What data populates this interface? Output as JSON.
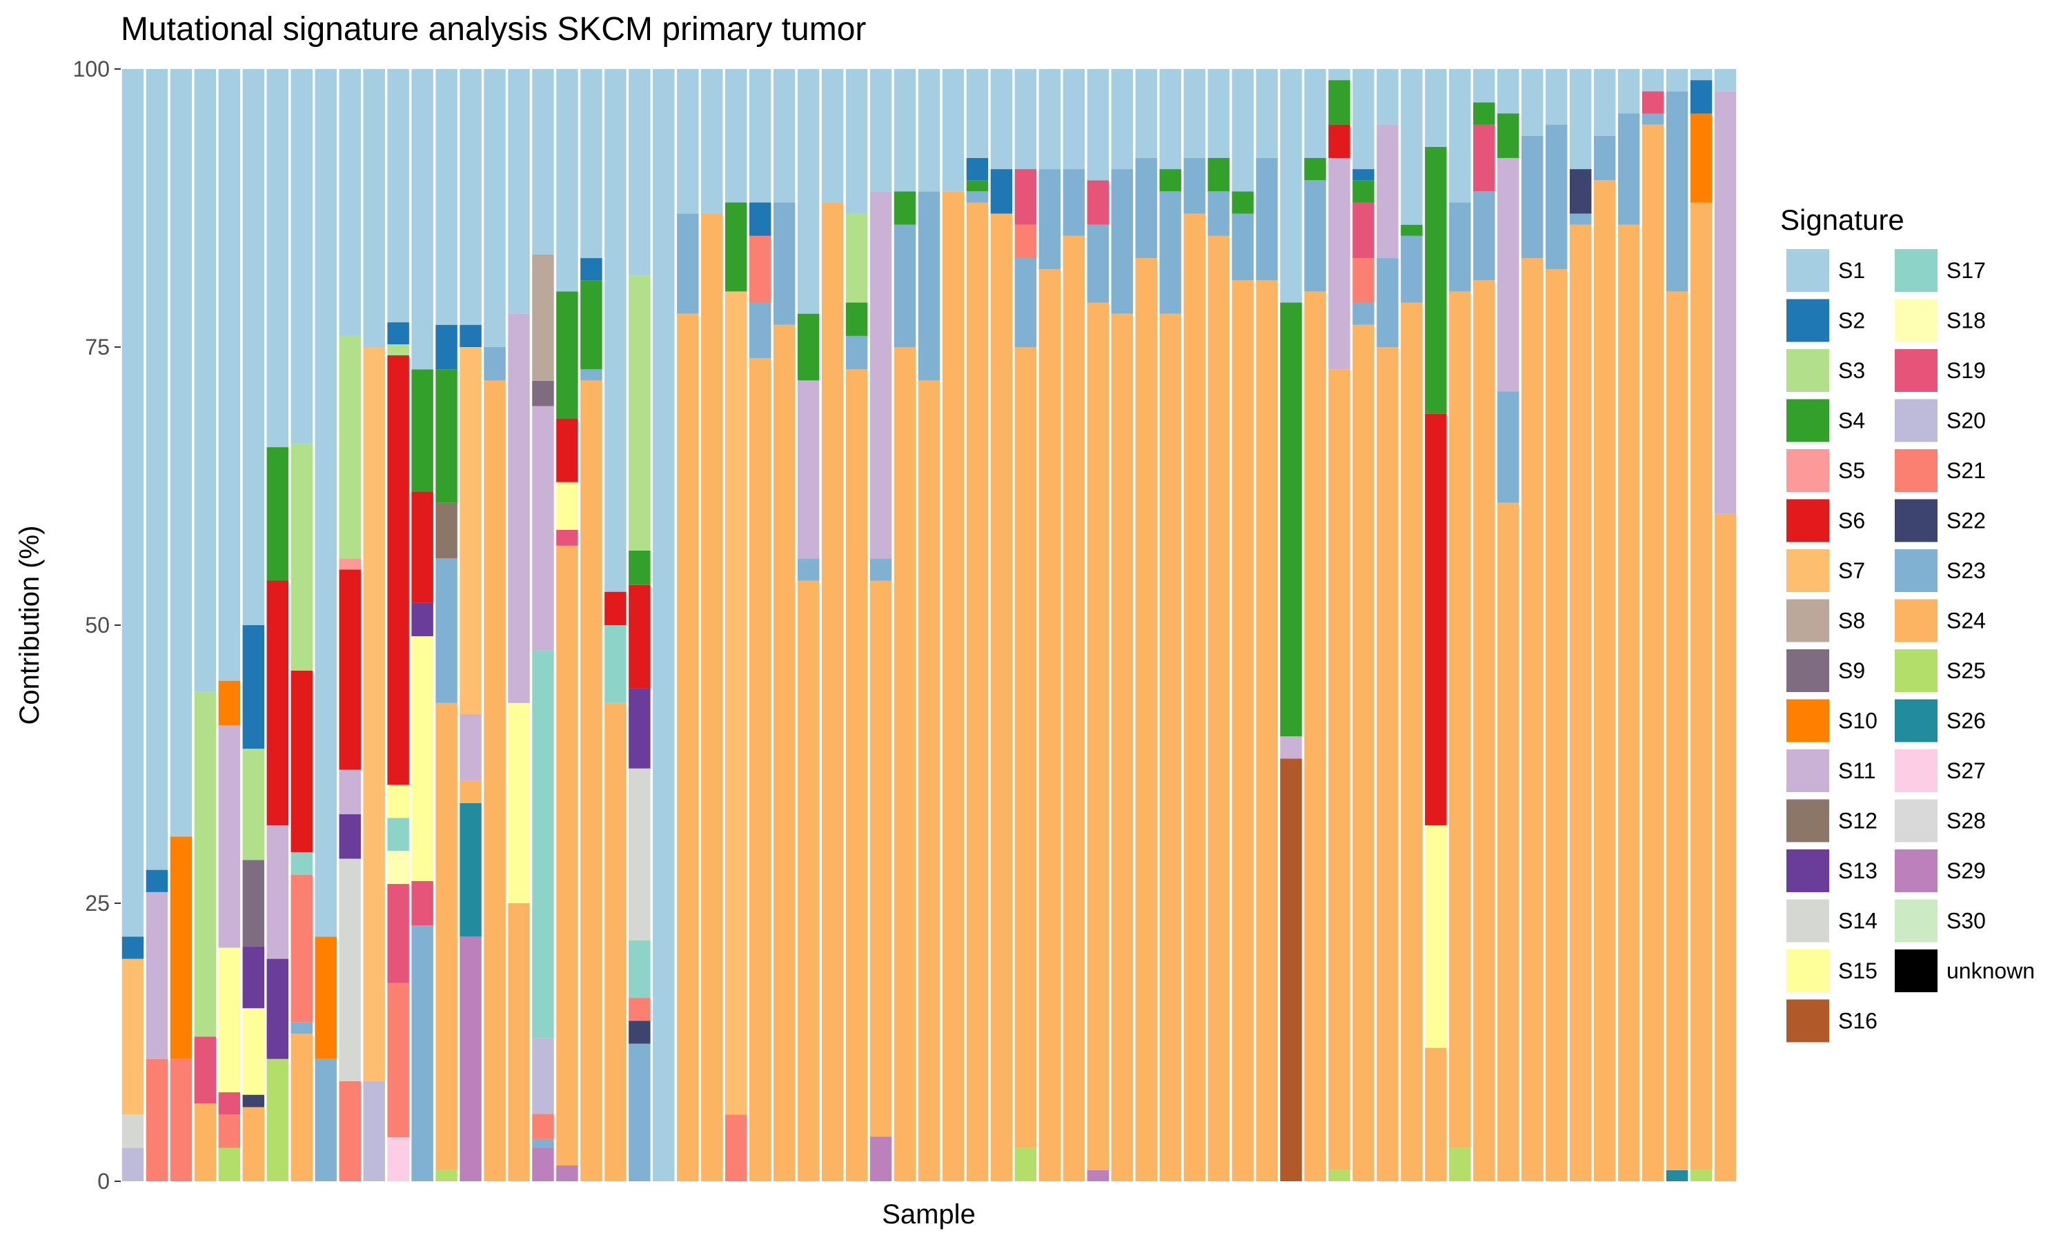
{
  "chart_data": {
    "type": "bar",
    "stacked": true,
    "title": "Mutational signature analysis SKCM primary tumor",
    "xlabel": "Sample",
    "ylabel": "Contribution (%)",
    "ylim": [
      0,
      100
    ],
    "yticks": [
      "0",
      "25",
      "50",
      "75",
      "100"
    ],
    "grid": false,
    "legend": {
      "title": "Signature",
      "position": "right",
      "columns": 2,
      "entries": [
        {
          "key": "S1",
          "label": "S1",
          "color": "#a6cee3"
        },
        {
          "key": "S2",
          "label": "S2",
          "color": "#1f78b4"
        },
        {
          "key": "S3",
          "label": "S3",
          "color": "#b2df8a"
        },
        {
          "key": "S4",
          "label": "S4",
          "color": "#33a02c"
        },
        {
          "key": "S5",
          "label": "S5",
          "color": "#fb9a99"
        },
        {
          "key": "S6",
          "label": "S6",
          "color": "#e31a1c"
        },
        {
          "key": "S7",
          "label": "S7",
          "color": "#fdbf6f"
        },
        {
          "key": "S8",
          "label": "S8",
          "color": "#bca89a"
        },
        {
          "key": "S9",
          "label": "S9",
          "color": "#806c80"
        },
        {
          "key": "S10",
          "label": "S10",
          "color": "#ff7f00"
        },
        {
          "key": "S11",
          "label": "S11",
          "color": "#cab2d6"
        },
        {
          "key": "S12",
          "label": "S12",
          "color": "#8c7668"
        },
        {
          "key": "S13",
          "label": "S13",
          "color": "#6a3d9a"
        },
        {
          "key": "S14",
          "label": "S14",
          "color": "#d5d8d2"
        },
        {
          "key": "S15",
          "label": "S15",
          "color": "#ffff99"
        },
        {
          "key": "S16",
          "label": "S16",
          "color": "#b15928"
        },
        {
          "key": "S17",
          "label": "S17",
          "color": "#8dd3c7"
        },
        {
          "key": "S18",
          "label": "S18",
          "color": "#ffffb3"
        },
        {
          "key": "S19",
          "label": "S19",
          "color": "#e7547a"
        },
        {
          "key": "S20",
          "label": "S20",
          "color": "#bebada"
        },
        {
          "key": "S21",
          "label": "S21",
          "color": "#fb8072"
        },
        {
          "key": "S22",
          "label": "S22",
          "color": "#3e4470"
        },
        {
          "key": "S23",
          "label": "S23",
          "color": "#80b1d3"
        },
        {
          "key": "S24",
          "label": "S24",
          "color": "#fdb462"
        },
        {
          "key": "S25",
          "label": "S25",
          "color": "#b3de69"
        },
        {
          "key": "S26",
          "label": "S26",
          "color": "#238b9e"
        },
        {
          "key": "S27",
          "label": "S27",
          "color": "#fccde5"
        },
        {
          "key": "S28",
          "label": "S28",
          "color": "#d9d9d9"
        },
        {
          "key": "S29",
          "label": "S29",
          "color": "#bc80bd"
        },
        {
          "key": "S30",
          "label": "S30",
          "color": "#ccebc5"
        },
        {
          "key": "unknown",
          "label": "unknown",
          "color": "#000000"
        }
      ]
    },
    "series_order": [
      "S1",
      "S2",
      "S3",
      "S4",
      "S5",
      "S6",
      "S7",
      "S8",
      "S9",
      "S10",
      "S11",
      "S12",
      "S13",
      "S14",
      "S15",
      "S16",
      "S17",
      "S18",
      "S19",
      "S20",
      "S21",
      "S22",
      "S23",
      "S24",
      "S25",
      "S26",
      "S27",
      "S28",
      "S29",
      "S30",
      "unknown"
    ],
    "samples": [
      {
        "S7": 14,
        "S20": 3,
        "S14": 3,
        "S2": 2,
        "S1": 78
      },
      {
        "S11": 15,
        "S21": 11,
        "S2": 2,
        "S1": 72
      },
      {
        "S21": 11,
        "S10": 20,
        "S1": 69
      },
      {
        "S24": 7,
        "S19": 6,
        "S3": 31,
        "S1": 56
      },
      {
        "S25": 3,
        "S19": 2,
        "S21": 3,
        "S11": 20,
        "S15": 13,
        "S10": 4,
        "S1": 55
      },
      {
        "S24": 6,
        "S9": 7,
        "S22": 1,
        "S13": 5,
        "S15": 7,
        "S3": 9,
        "S2": 10,
        "S1": 45
      },
      {
        "S25": 11,
        "S11": 12,
        "S13": 9,
        "S6": 22,
        "S4": 12,
        "S1": 34
      },
      {
        "S24": 13,
        "S21": 13,
        "S23": 1,
        "S17": 2,
        "S6": 16,
        "S3": 20,
        "S1": 33
      },
      {
        "S10": 11,
        "S23": 11,
        "S1": 78
      },
      {
        "S14": 20,
        "S21": 9,
        "S13": 4,
        "S11": 4,
        "S6": 18,
        "S5": 1,
        "S3": 20,
        "S1": 24
      },
      {
        "S20": 9,
        "S7": 66,
        "S1": 25
      },
      {
        "S27": 4,
        "S19": 9,
        "S21": 14,
        "S18": 3,
        "S17": 3,
        "S15": 3,
        "S6": 39,
        "S3": 1,
        "S2": 2,
        "S1": 23
      },
      {
        "S23": 23,
        "S19": 4,
        "S13": 3,
        "S15": 22,
        "S6": 10,
        "S4": 11,
        "S1": 27
      },
      {
        "S25": 1,
        "S23": 13,
        "S12": 5,
        "S24": 42,
        "S4": 12,
        "S2": 4,
        "S1": 23
      },
      {
        "S29": 22,
        "S26": 12,
        "S24": 2,
        "S11": 6,
        "S7": 33,
        "S2": 2,
        "S1": 23
      },
      {
        "S23": 3,
        "S24": 72,
        "S1": 25
      },
      {
        "S15": 18,
        "S11": 35,
        "S24": 25,
        "S1": 22
      },
      {
        "S29": 4,
        "S23": 1,
        "S21": 3,
        "S20": 9,
        "S11": 29,
        "S17": 46,
        "S8": 15,
        "S9": 3,
        "S4": 0,
        "S1": 22
      },
      {
        "S29": 1,
        "S15": 3,
        "S19": 1,
        "S24": 39,
        "S6": 4,
        "S4": 8,
        "S1": 14
      },
      {
        "S23": 1,
        "S24": 72,
        "S4": 8,
        "S2": 2,
        "S1": 17
      },
      {
        "S17": 7,
        "S24": 43,
        "S6": 3,
        "S1": 47
      },
      {
        "S14": 15,
        "S23": 12,
        "S22": 2,
        "S13": 7,
        "S21": 2,
        "S17": 5,
        "S6": 9,
        "S4": 3,
        "S3": 24,
        "S1": 18
      },
      {
        "S1": 100
      },
      {
        "S23": 9,
        "S24": 78,
        "S1": 13
      },
      {
        "S24": 87,
        "S1": 13
      },
      {
        "S21": 6,
        "S7": 74,
        "S4": 8,
        "S1": 12
      },
      {
        "S23": 5,
        "S21": 6,
        "S24": 74,
        "S4": 0,
        "S2": 3,
        "S1": 12
      },
      {
        "S23": 11,
        "S24": 77,
        "S1": 12
      },
      {
        "S23": 2,
        "S11": 16,
        "S24": 54,
        "S4": 6,
        "S1": 22
      },
      {
        "S24": 88,
        "S1": 12
      },
      {
        "S23": 3,
        "S24": 73,
        "S4": 3,
        "S3": 8,
        "S1": 13
      },
      {
        "S29": 4,
        "S23": 2,
        "S11": 33,
        "S24": 50,
        "S1": 11
      },
      {
        "S23": 11,
        "S24": 75,
        "S4": 3,
        "S1": 11
      },
      {
        "S23": 17,
        "S24": 72,
        "S1": 11
      },
      {
        "S24": 89,
        "S1": 11
      },
      {
        "S23": 1,
        "S24": 88,
        "S4": 1,
        "S2": 2,
        "S1": 8
      },
      {
        "S24": 87,
        "S2": 4,
        "S1": 9
      },
      {
        "S25": 3,
        "S23": 8,
        "S21": 3,
        "S19": 5,
        "S24": 72,
        "S1": 9
      },
      {
        "S23": 9,
        "S24": 82,
        "S1": 9
      },
      {
        "S23": 6,
        "S24": 85,
        "S1": 9
      },
      {
        "S29": 1,
        "S23": 7,
        "S19": 4,
        "S24": 78,
        "S1": 10
      },
      {
        "S23": 13,
        "S24": 78,
        "S1": 9
      },
      {
        "S23": 9,
        "S24": 83,
        "S1": 8
      },
      {
        "S23": 11,
        "S24": 78,
        "S4": 2,
        "S1": 9
      },
      {
        "S23": 5,
        "S24": 87,
        "S1": 8
      },
      {
        "S23": 4,
        "S24": 85,
        "S4": 3,
        "S1": 8
      },
      {
        "S23": 6,
        "S24": 81,
        "S4": 2,
        "S1": 11
      },
      {
        "S23": 11,
        "S24": 81,
        "S1": 8
      },
      {
        "S16": 38,
        "S11": 2,
        "S4": 39,
        "S1": 21
      },
      {
        "S23": 10,
        "S24": 80,
        "S4": 2,
        "S1": 8
      },
      {
        "S25": 1,
        "S11": 19,
        "S24": 72,
        "S6": 3,
        "S4": 4,
        "S2": 0,
        "S1": 1
      },
      {
        "S23": 2,
        "S19": 5,
        "S21": 4,
        "S24": 77,
        "S4": 2,
        "S2": 1,
        "S1": 9
      },
      {
        "S23": 8,
        "S11": 12,
        "S24": 75,
        "S1": 5
      },
      {
        "S23": 6,
        "S24": 79,
        "S4": 1,
        "S1": 14
      },
      {
        "S15": 20,
        "S24": 12,
        "S6": 37,
        "S4": 24,
        "S1": 7
      },
      {
        "S25": 3,
        "S23": 8,
        "S24": 77,
        "S1": 12
      },
      {
        "S23": 8,
        "S19": 6,
        "S24": 81,
        "S4": 2,
        "S1": 3
      },
      {
        "S23": 10,
        "S11": 21,
        "S24": 61,
        "S4": 4,
        "S1": 4
      },
      {
        "S23": 11,
        "S24": 83,
        "S1": 6
      },
      {
        "S23": 13,
        "S24": 82,
        "S1": 5
      },
      {
        "S23": 1,
        "S22": 4,
        "S24": 86,
        "S1": 9
      },
      {
        "S23": 4,
        "S24": 90,
        "S1": 6
      },
      {
        "S23": 10,
        "S24": 86,
        "S1": 4
      },
      {
        "S23": 1,
        "S19": 2,
        "S24": 95,
        "S1": 2
      },
      {
        "S26": 1,
        "S23": 18,
        "S24": 79,
        "S1": 2
      },
      {
        "S10": 8,
        "S25": 1,
        "S24": 87,
        "S2": 3,
        "S1": 1
      },
      {
        "S11": 38,
        "S24": 60,
        "S1": 2
      }
    ]
  }
}
